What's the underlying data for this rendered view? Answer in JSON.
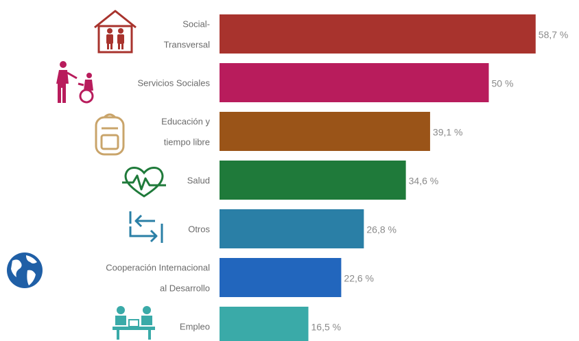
{
  "chart_data": {
    "type": "bar",
    "orientation": "horizontal",
    "categories": [
      [
        "Social-",
        "Transversal"
      ],
      [
        "Servicios Sociales"
      ],
      [
        "Educación y",
        "tiempo libre"
      ],
      [
        "Salud"
      ],
      [
        "Otros"
      ],
      [
        "Cooperación Internacional",
        "al Desarrollo"
      ],
      [
        "Empleo"
      ]
    ],
    "values": [
      58.7,
      50,
      39.1,
      34.6,
      26.8,
      22.6,
      16.5
    ],
    "value_labels": [
      "58,7 %",
      "50 %",
      "39,1 %",
      "34,6 %",
      "26,8 %",
      "22,6 %",
      "16,5 %"
    ],
    "colors": [
      "#a8332d",
      "#b81c5c",
      "#9a5418",
      "#1f7a3a",
      "#2a7fa6",
      "#2266bd",
      "#3aaaa8"
    ],
    "icons": [
      "family-house-icon",
      "social-care-icon",
      "backpack-icon",
      "heart-pulse-icon",
      "swap-arrows-icon",
      "globe-icon",
      "desk-meeting-icon"
    ],
    "xlim": [
      0,
      60
    ],
    "grid": false,
    "title": "",
    "xlabel": "",
    "ylabel": ""
  }
}
